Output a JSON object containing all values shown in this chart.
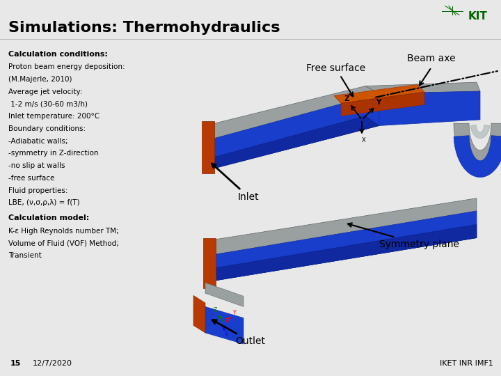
{
  "title": "Simulations: Thermohydraulics",
  "background_color": "#e8e8e8",
  "slide_bg": "#ffffff",
  "title_color": "#000000",
  "title_fontsize": 16,
  "calc_conditions_title": "Calculation conditions:",
  "calc_conditions_text": [
    "Proton beam energy deposition:",
    "(M.Majerle, 2010)",
    "Average jet velocity:",
    " 1-2 m/s (30-60 m3/h)",
    "Inlet temperature: 200°C",
    "Boundary conditions:",
    "-Adiabatic walls;",
    "-symmetry in Z-direction",
    "-no slip at walls",
    "-free surface",
    "Fluid properties:",
    "LBE, (ν,σ,ρ,λ) = f(T)"
  ],
  "calc_model_title": "Calculation model:",
  "calc_model_text": [
    "K-ε High Reynolds number TM;",
    "Volume of Fluid (VOF) Method;",
    "Transient"
  ],
  "label_free_surface": "Free surface",
  "label_beam_axe": "Beam axe",
  "label_inlet": "Inlet",
  "label_outlet": "Outlet",
  "label_symmetry_plane": "Symmetry plane",
  "footer_left_num": "15",
  "footer_left_date": "12/7/2020",
  "footer_right": "IKET INR IMF1",
  "footer_bg": "#d0d0d0",
  "text_fontsize": 8.0,
  "label_fontsize": 10,
  "colors": {
    "blue_body": "#1a3ecc",
    "blue_dark": "#1028a0",
    "orange_top": "#cc5500",
    "orange_dark": "#aa3300",
    "gray_top": "#9aA0a0",
    "gray_dark": "#808888",
    "silver_inner": "#c0c8c8"
  }
}
